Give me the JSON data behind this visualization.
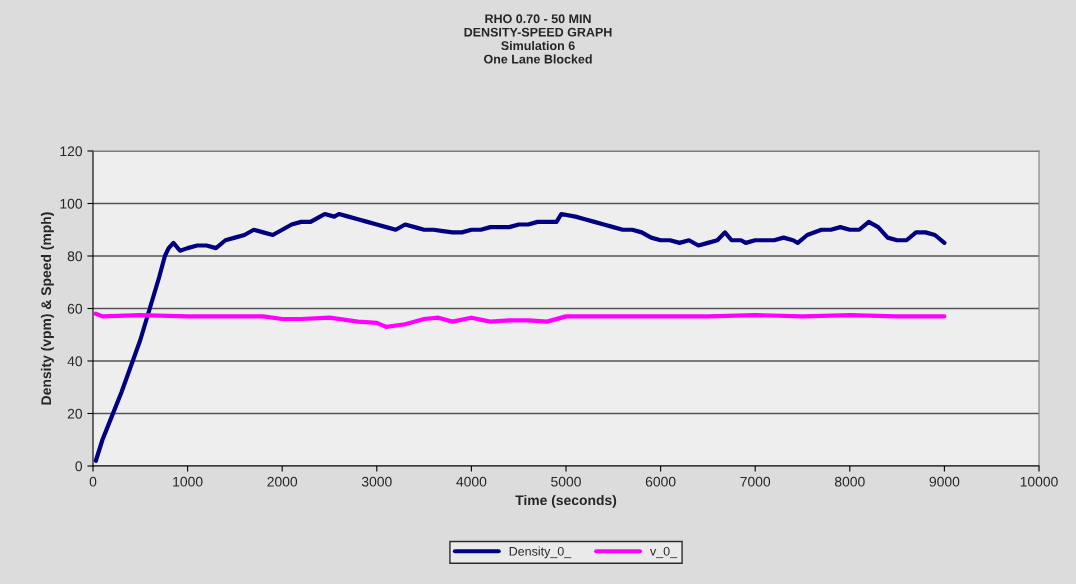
{
  "chart_data": {
    "type": "line",
    "title": "RHO 0.70 - 50 MIN\nDENSITY-SPEED GRAPH\nSimulation 6\nOne Lane Blocked",
    "xlabel": "Time (seconds)",
    "ylabel": "Density (vpm) & Speed (mph)",
    "xlim": [
      0,
      10000
    ],
    "xticks": [
      0,
      1000,
      2000,
      3000,
      4000,
      5000,
      6000,
      7000,
      8000,
      9000,
      10000
    ],
    "ylim": [
      0,
      120
    ],
    "yticks": [
      0,
      20,
      40,
      60,
      80,
      100,
      120
    ],
    "grid": "y",
    "legend": "bottom",
    "marker": "none",
    "line_style": "solid",
    "series": [
      {
        "name": "Density_0_",
        "color": "#000080",
        "x": [
          30,
          100,
          200,
          300,
          400,
          500,
          600,
          700,
          760,
          800,
          850,
          920,
          1000,
          1100,
          1200,
          1300,
          1400,
          1500,
          1600,
          1700,
          1800,
          1900,
          2000,
          2100,
          2200,
          2300,
          2400,
          2450,
          2550,
          2600,
          2700,
          2800,
          2900,
          3000,
          3100,
          3200,
          3300,
          3400,
          3500,
          3600,
          3700,
          3800,
          3900,
          4000,
          4100,
          4200,
          4300,
          4400,
          4500,
          4600,
          4700,
          4800,
          4900,
          4950,
          5100,
          5200,
          5300,
          5400,
          5500,
          5600,
          5700,
          5800,
          5900,
          6000,
          6100,
          6200,
          6300,
          6400,
          6500,
          6600,
          6680,
          6750,
          6850,
          6900,
          7000,
          7100,
          7200,
          7300,
          7400,
          7450,
          7550,
          7700,
          7800,
          7900,
          8000,
          8100,
          8200,
          8300,
          8400,
          8500,
          8600,
          8700,
          8800,
          8900,
          9000
        ],
        "values": [
          2,
          10,
          19,
          28,
          38,
          48,
          60,
          72,
          80,
          83,
          85,
          82,
          83,
          84,
          84,
          83,
          86,
          87,
          88,
          90,
          89,
          88,
          90,
          92,
          93,
          93,
          95,
          96,
          95,
          96,
          95,
          94,
          93,
          92,
          91,
          90,
          92,
          91,
          90,
          90,
          89.5,
          89,
          89,
          90,
          90,
          91,
          91,
          91,
          92,
          92,
          93,
          93,
          93,
          96,
          95,
          94,
          93,
          92,
          91,
          90,
          90,
          89,
          87,
          86,
          86,
          85,
          86,
          84,
          85,
          86,
          89,
          86,
          86,
          85,
          86,
          86,
          86,
          87,
          86,
          85,
          88,
          90,
          90,
          91,
          90,
          90,
          93,
          91,
          87,
          86,
          86,
          89,
          89,
          88,
          85
        ]
      },
      {
        "name": "v_0_",
        "color": "#ff00ff",
        "x": [
          30,
          100,
          500,
          1000,
          1500,
          1800,
          2000,
          2200,
          2500,
          2800,
          3000,
          3100,
          3300,
          3500,
          3650,
          3800,
          4000,
          4200,
          4400,
          4600,
          4800,
          5000,
          5500,
          6000,
          6500,
          7000,
          7500,
          8000,
          8500,
          9000
        ],
        "values": [
          58,
          57,
          57.5,
          57,
          57,
          57,
          56,
          56,
          56.5,
          55,
          54.5,
          53,
          54,
          56,
          56.5,
          55,
          56.5,
          55,
          55.5,
          55.5,
          55,
          57,
          57,
          57,
          57,
          57.5,
          57,
          57.5,
          57,
          57
        ]
      }
    ]
  }
}
